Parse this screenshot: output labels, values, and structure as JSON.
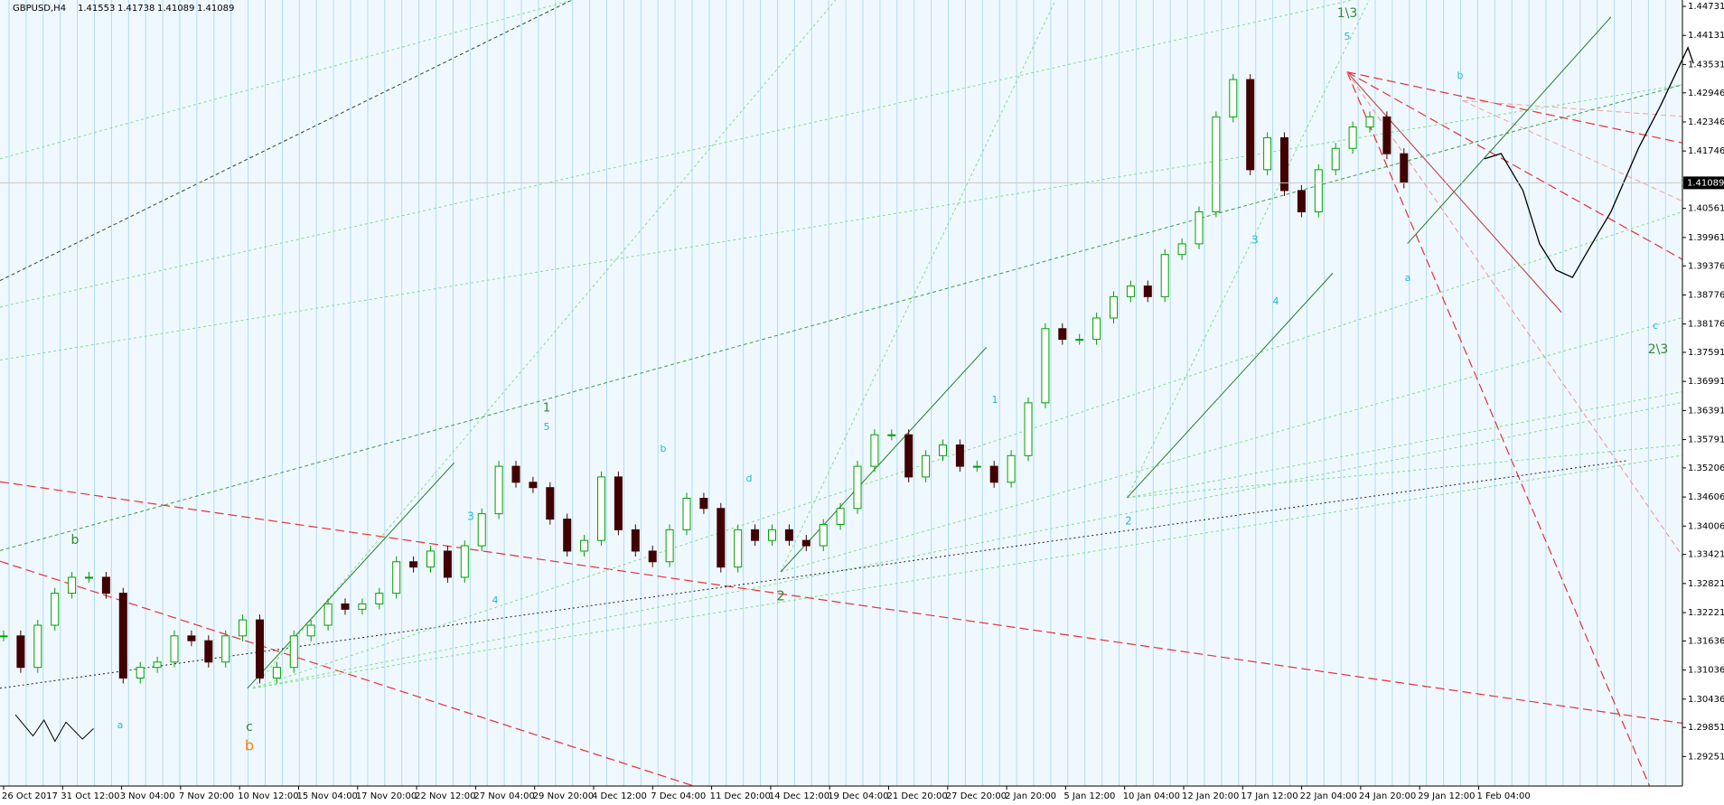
{
  "header": {
    "symbol": "GBPUSD,H4",
    "open": 1.41553,
    "high": 1.41738,
    "low": 1.41089,
    "close": 1.41089
  },
  "chart_data": {
    "type": "candlestick",
    "x_labels": [
      "26 Oct 2017",
      "31 Oct 12:00",
      "3 Nov 04:00",
      "7 Nov 20:00",
      "10 Nov 12:00",
      "15 Nov 04:00",
      "17 Nov 20:00",
      "22 Nov 12:00",
      "27 Nov 04:00",
      "29 Nov 20:00",
      "4 Dec 12:00",
      "7 Dec 04:00",
      "11 Dec 20:00",
      "14 Dec 12:00",
      "19 Dec 04:00",
      "21 Dec 20:00",
      "27 Dec 20:00",
      "2 Jan 20:00",
      "5 Jan 12:00",
      "10 Jan 04:00",
      "12 Jan 20:00",
      "17 Jan 12:00",
      "22 Jan 04:00",
      "24 Jan 20:00",
      "29 Jan 12:00",
      "1 Feb 04:00"
    ],
    "values": [
      1.3174,
      1.3109,
      1.3196,
      1.3262,
      1.3295,
      1.3295,
      1.3262,
      1.3087,
      1.3109,
      1.312,
      1.3174,
      1.3164,
      1.312,
      1.3174,
      1.3207,
      1.3087,
      1.3109,
      1.3174,
      1.3196,
      1.324,
      1.3229,
      1.324,
      1.3262,
      1.3327,
      1.3316,
      1.3349,
      1.3295,
      1.336,
      1.3426,
      1.3524,
      1.3491,
      1.348,
      1.3415,
      1.3349,
      1.3371,
      1.3502,
      1.3393,
      1.3349,
      1.3327,
      1.3393,
      1.3458,
      1.3437,
      1.3316,
      1.3393,
      1.3371,
      1.3393,
      1.3371,
      1.336,
      1.3404,
      1.3437,
      1.3524,
      1.3589,
      1.3589,
      1.3502,
      1.3546,
      1.3568,
      1.3524,
      1.3524,
      1.3491,
      1.3546,
      1.3655,
      1.3808,
      1.3786,
      1.3786,
      1.383,
      1.3874,
      1.3896,
      1.3874,
      1.3961,
      1.3983,
      1.4049,
      1.4245,
      1.4322,
      1.4136,
      1.4202,
      1.4093,
      1.4049,
      1.4136,
      1.418,
      1.4224,
      1.4245,
      1.4169,
      1.41089
    ],
    "ylim": [
      1.28642,
      1.44862
    ],
    "yticks": [
      1.44731,
      1.44131,
      1.43531,
      1.42946,
      1.42346,
      1.41746,
      1.40561,
      1.39961,
      1.39376,
      1.38776,
      1.38176,
      1.37591,
      1.36991,
      1.36391,
      1.35791,
      1.35206,
      1.34606,
      1.34006,
      1.33421,
      1.32821,
      1.32221,
      1.31636,
      1.31036,
      1.30436,
      1.29851,
      1.29251
    ],
    "last_price": 1.41089,
    "up_color": "#00a000",
    "down_color": "#400000",
    "grid": true,
    "annotations": [
      {
        "text": "1\\3",
        "color": "#2e8b2e"
      },
      {
        "text": "5",
        "color": "#20b8d8"
      },
      {
        "text": "b",
        "color": "#20b8d8"
      },
      {
        "text": "2\\3",
        "color": "#2e8b2e"
      },
      {
        "text": "c",
        "color": "#20b8d8"
      },
      {
        "text": "1",
        "color": "#2e8b2e"
      },
      {
        "text": "5",
        "color": "#20b8d8"
      },
      {
        "text": "2",
        "color": "#2e8b2e"
      },
      {
        "text": "3",
        "color": "#20b8d8"
      },
      {
        "text": "4",
        "color": "#20b8d8"
      },
      {
        "text": "b",
        "color": "#ff8000"
      },
      {
        "text": "c",
        "color": "#2e8b2e"
      },
      {
        "text": "b",
        "color": "#2e8b2e"
      },
      {
        "text": "a",
        "color": "#20b8d8"
      },
      {
        "text": "2",
        "color": "#20b8d8"
      },
      {
        "text": "4",
        "color": "#20b8d8"
      },
      {
        "text": "3",
        "color": "#20b8d8"
      },
      {
        "text": "1",
        "color": "#20b8d8"
      },
      {
        "text": "b",
        "color": "#20b8d8"
      },
      {
        "text": "d",
        "color": "#20b8d8"
      },
      {
        "text": "a",
        "color": "#20b8d8"
      }
    ]
  }
}
